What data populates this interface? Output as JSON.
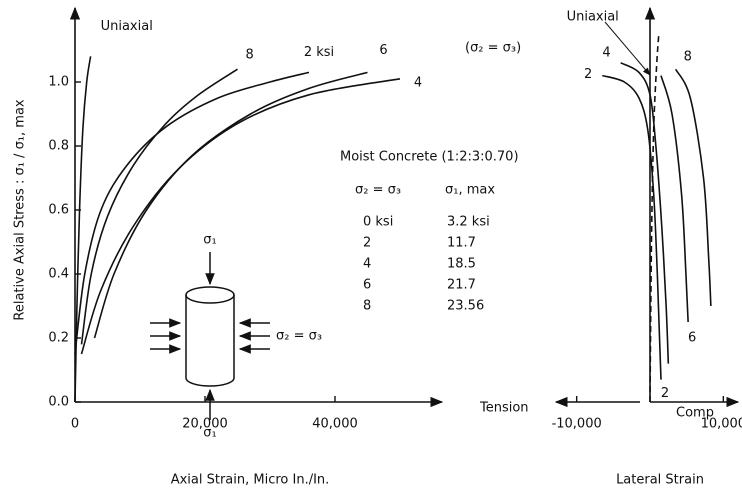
{
  "chart_data": [
    {
      "type": "line",
      "xlabel": "Axial Strain, Micro In./In.",
      "ylabel": "Relative Axial Stress : σ₁ / σ₁, max",
      "xlim": [
        0,
        56000
      ],
      "ylim": [
        0,
        1.2
      ],
      "xticks": [
        0,
        {
          "value": 20000,
          "label": "20,000"
        },
        {
          "value": 40000,
          "label": "40,000"
        }
      ],
      "yticks": [
        {
          "value": 0,
          "label": "0.0"
        },
        0.2,
        0.4,
        0.6,
        0.8,
        {
          "value": 1,
          "label": "1.0"
        }
      ],
      "series": [
        {
          "name": "Uniaxial",
          "color": "#111",
          "x": [
            0,
            300,
            700,
            1200,
            1800,
            2400
          ],
          "values": [
            0,
            0.3,
            0.6,
            0.85,
            1.0,
            1.08
          ]
        },
        {
          "name": "8",
          "color": "#111",
          "x": [
            1000,
            2500,
            5000,
            9000,
            14000,
            19000,
            25000
          ],
          "values": [
            0.18,
            0.4,
            0.58,
            0.74,
            0.87,
            0.96,
            1.04
          ]
        },
        {
          "name": "2 ksi",
          "color": "#111",
          "x": [
            0,
            1500,
            4000,
            8000,
            14000,
            22000,
            30000,
            36000
          ],
          "values": [
            0.15,
            0.4,
            0.6,
            0.74,
            0.86,
            0.95,
            1.0,
            1.03
          ]
        },
        {
          "name": "6",
          "color": "#111",
          "x": [
            3000,
            6000,
            11000,
            18000,
            27000,
            36000,
            45000
          ],
          "values": [
            0.2,
            0.4,
            0.6,
            0.77,
            0.9,
            0.98,
            1.03
          ]
        },
        {
          "name": "4",
          "color": "#111",
          "x": [
            1000,
            4000,
            9000,
            16000,
            25000,
            36000,
            50000
          ],
          "values": [
            0.15,
            0.35,
            0.55,
            0.73,
            0.87,
            0.96,
            1.01
          ]
        }
      ],
      "annotations": [
        "(σ₂ = σ₃)",
        "Moist Concrete (1:2:3:0.70)",
        "σ₁",
        "σ₁",
        "σ₂ = σ₃"
      ],
      "table": {
        "header": [
          "σ₂ = σ₃",
          "σ₁, max"
        ],
        "rows": [
          [
            "0 ksi",
            "3.2 ksi"
          ],
          [
            "2",
            "11.7"
          ],
          [
            "4",
            "18.5"
          ],
          [
            "6",
            "21.7"
          ],
          [
            "8",
            "23.56"
          ]
        ]
      }
    },
    {
      "type": "line",
      "xlabel": "Lateral Strain",
      "xlim": [
        -12000,
        12000
      ],
      "ylim": [
        0,
        1.2
      ],
      "xticks": [
        {
          "value": -10000,
          "label": "-10,000"
        },
        {
          "value": 10000,
          "label": "10,000"
        }
      ],
      "annotations": [
        "Tension",
        "Comp"
      ],
      "series": [
        {
          "name": "2",
          "color": "#111",
          "x": [
            -6500,
            -3500,
            -1500,
            -300,
            500,
            1000,
            1300,
            1500
          ],
          "values": [
            1.02,
            1.0,
            0.95,
            0.85,
            0.65,
            0.4,
            0.2,
            0.07
          ]
        },
        {
          "name": "4",
          "color": "#111",
          "x": [
            -4000,
            -1500,
            0,
            800,
            1600,
            2200,
            2500
          ],
          "values": [
            1.06,
            1.03,
            0.96,
            0.8,
            0.55,
            0.3,
            0.12
          ]
        },
        {
          "name": "Uniaxial",
          "color": "#111",
          "dashed": true,
          "x": [
            0,
            200,
            500,
            900,
            1200
          ],
          "values": [
            0,
            0.5,
            0.85,
            1.05,
            1.15
          ]
        },
        {
          "name": "6",
          "color": "#111",
          "x": [
            1500,
            3000,
            4300,
            4900,
            5200
          ],
          "values": [
            1.02,
            0.9,
            0.65,
            0.4,
            0.25
          ]
        },
        {
          "name": "8",
          "color": "#111",
          "x": [
            3500,
            5500,
            7300,
            8000,
            8300
          ],
          "values": [
            1.04,
            0.95,
            0.7,
            0.45,
            0.3
          ]
        }
      ]
    }
  ]
}
